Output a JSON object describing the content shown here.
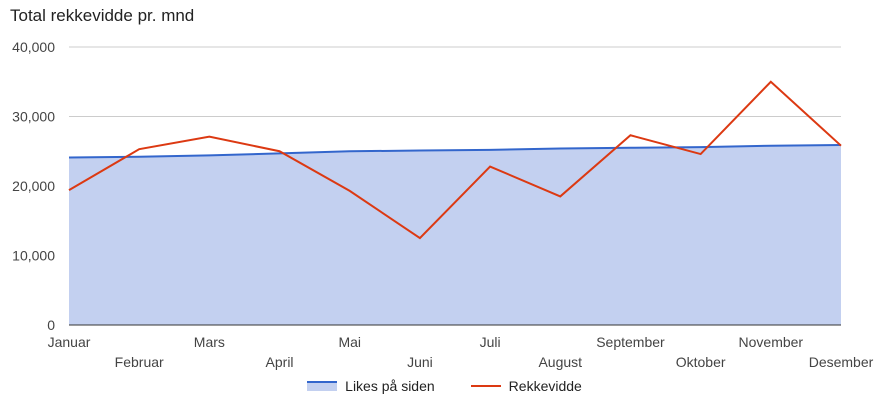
{
  "chart_data": {
    "type": "area",
    "title": "Total rekkevidde pr. mnd",
    "categories": [
      "Januar",
      "Februar",
      "Mars",
      "April",
      "Mai",
      "Juni",
      "Juli",
      "August",
      "September",
      "Oktober",
      "November",
      "Desember"
    ],
    "ylim": [
      0,
      40000
    ],
    "yticks": [
      "0",
      "10,000",
      "20,000",
      "30,000",
      "40,000"
    ],
    "grid": true,
    "legend_position": "bottom",
    "series": [
      {
        "name": "Likes på siden",
        "type": "area",
        "color": "#3366cc",
        "fill": "#c3d0f0",
        "values": [
          24100,
          24200,
          24400,
          24700,
          25000,
          25100,
          25200,
          25400,
          25500,
          25600,
          25800,
          25900
        ]
      },
      {
        "name": "Rekkevidde",
        "type": "line",
        "color": "#dc3912",
        "values": [
          19400,
          25300,
          27100,
          25000,
          19300,
          12500,
          22800,
          18500,
          27300,
          24600,
          35000,
          25800
        ]
      }
    ]
  }
}
